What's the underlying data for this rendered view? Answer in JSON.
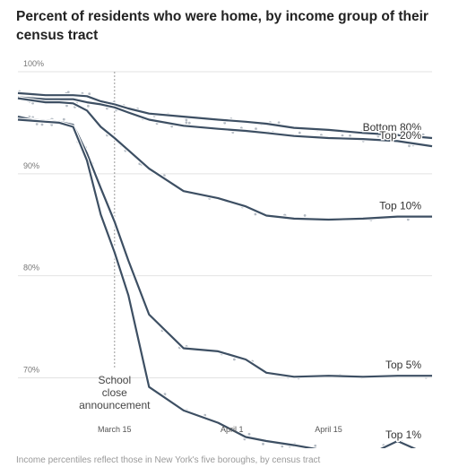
{
  "title": "Percent of residents who were home, by income group of their census tract",
  "source": "Income percentiles reflect those in New York's five boroughs, by census tract",
  "annotation": [
    "School",
    "close",
    "announcement"
  ],
  "chart_data": {
    "type": "line",
    "ylim": [
      66,
      100
    ],
    "xlim": [
      "2020-03-01",
      "2020-04-30"
    ],
    "yticks": [
      {
        "value": 100,
        "label": "100%"
      },
      {
        "value": 90,
        "label": "90%"
      },
      {
        "value": 80,
        "label": "80%"
      },
      {
        "value": 70,
        "label": "70%"
      }
    ],
    "xticks": [
      {
        "value": "2020-03-15",
        "label": "March 15"
      },
      {
        "value": "2020-04-01",
        "label": "April 1"
      },
      {
        "value": "2020-04-15",
        "label": "April 15"
      }
    ],
    "reference_line": {
      "x": "2020-03-15"
    },
    "x": [
      "2020-03-01",
      "2020-03-03",
      "2020-03-05",
      "2020-03-07",
      "2020-03-09",
      "2020-03-11",
      "2020-03-13",
      "2020-03-15",
      "2020-03-17",
      "2020-03-20",
      "2020-03-25",
      "2020-03-30",
      "2020-04-03",
      "2020-04-06",
      "2020-04-10",
      "2020-04-15",
      "2020-04-20",
      "2020-04-25",
      "2020-04-30"
    ],
    "series": [
      {
        "name": "Bottom 80%",
        "values": [
          97.9,
          97.8,
          97.7,
          97.7,
          97.7,
          97.6,
          97.1,
          96.8,
          96.4,
          95.9,
          95.6,
          95.3,
          95.1,
          94.9,
          94.5,
          94.3,
          94.0,
          93.8,
          93.5
        ],
        "color": "#3d4f63"
      },
      {
        "name": "Top 20%",
        "values": [
          97.5,
          97.4,
          97.3,
          97.3,
          97.3,
          97.0,
          96.8,
          96.5,
          96.0,
          95.3,
          94.7,
          94.4,
          94.2,
          94.0,
          93.7,
          93.5,
          93.4,
          93.2,
          92.7
        ],
        "color": "#3d4f63"
      },
      {
        "name": "Top 10%",
        "values": [
          97.4,
          97.2,
          97.0,
          97.0,
          96.9,
          96.2,
          94.6,
          93.5,
          92.3,
          90.5,
          88.3,
          87.6,
          86.8,
          85.9,
          85.6,
          85.5,
          85.6,
          85.8,
          85.8
        ],
        "color": "#3d4f63"
      },
      {
        "name": "Top 5%",
        "values": [
          95.6,
          95.3,
          95.2,
          95.1,
          94.8,
          92.0,
          88.6,
          85.3,
          81.5,
          76.2,
          72.9,
          72.6,
          71.8,
          70.5,
          70.1,
          70.2,
          70.1,
          70.2,
          70.2
        ],
        "color": "#3d4f63"
      },
      {
        "name": "Top 1%",
        "values": [
          95.3,
          95.2,
          95.1,
          95.0,
          94.6,
          91.3,
          86.0,
          82.3,
          78.1,
          69.1,
          66.8,
          65.6,
          64.2,
          63.8,
          63.4,
          62.8,
          62.2,
          63.8,
          62.3
        ],
        "color": "#3d4f63"
      }
    ]
  }
}
